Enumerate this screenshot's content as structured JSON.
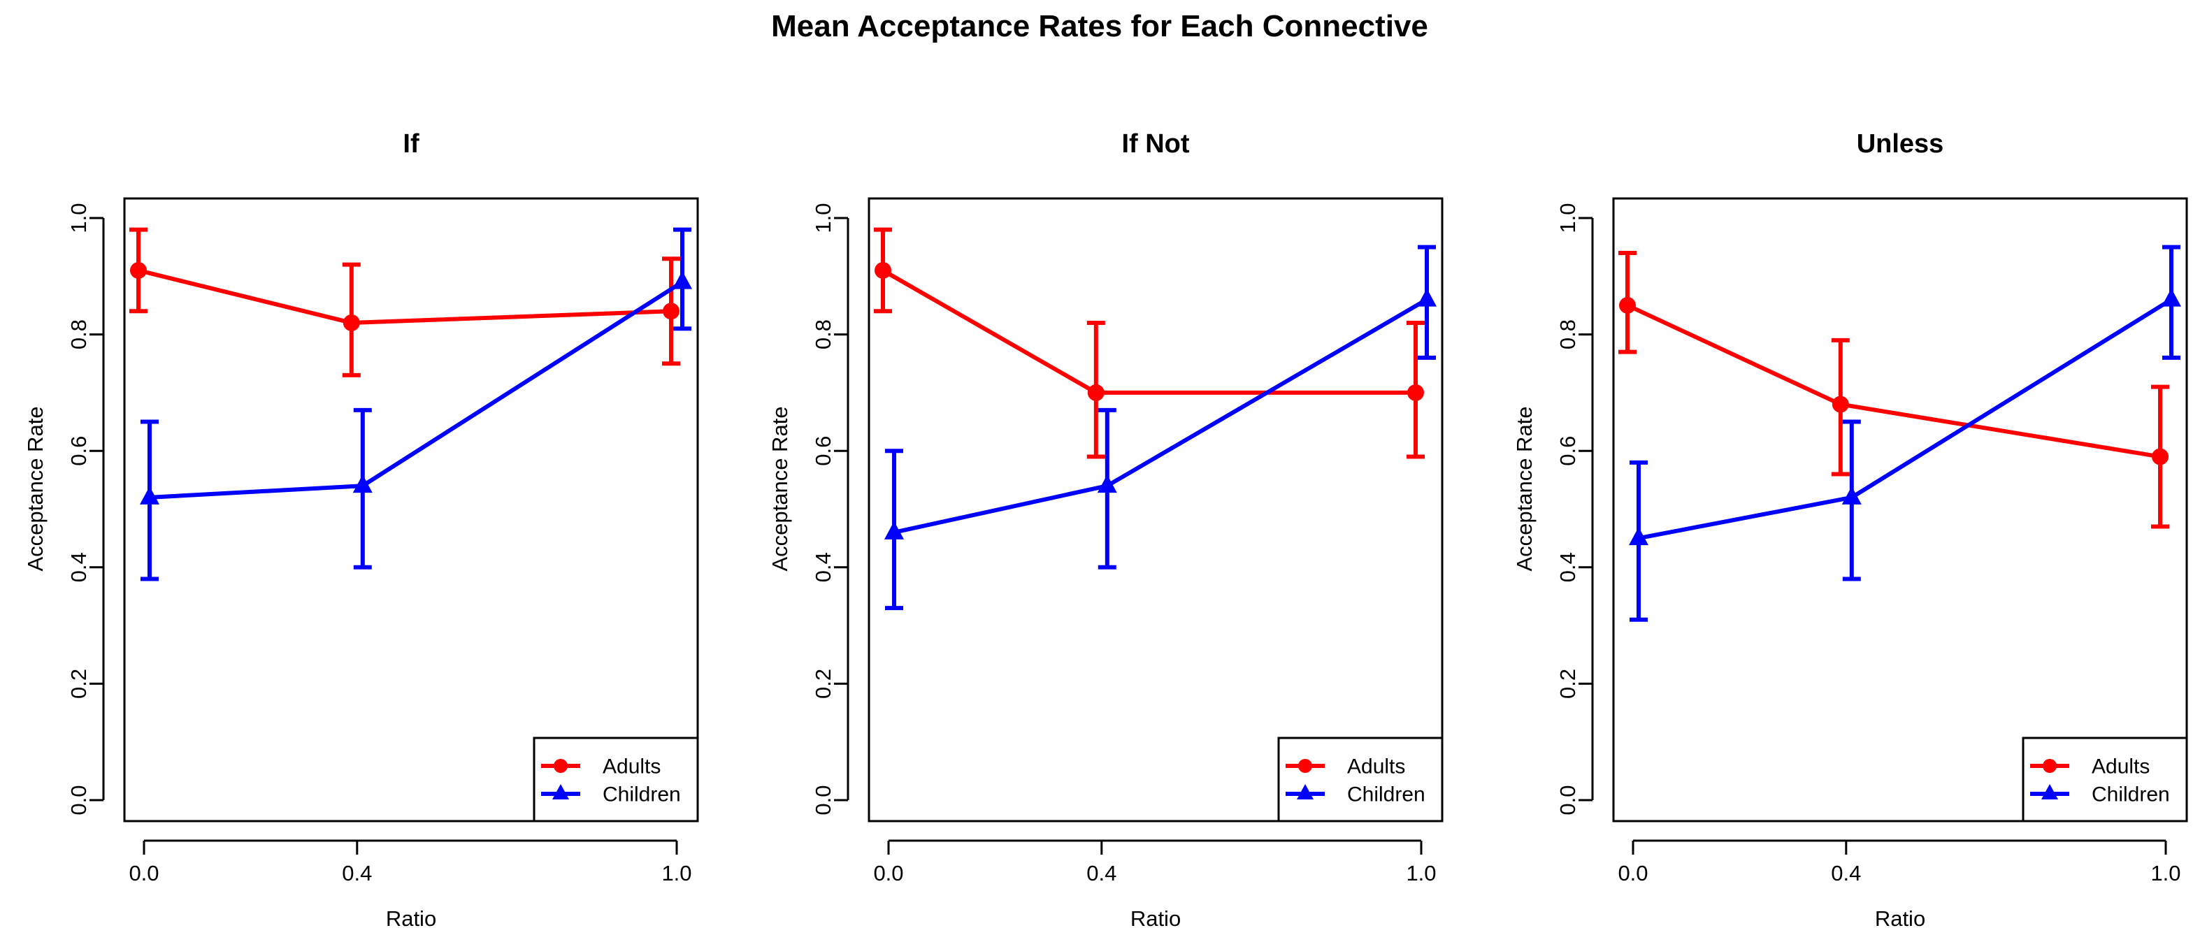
{
  "chart_data": {
    "type": "line",
    "title": "Mean Acceptance Rates for Each Connective",
    "colors": {
      "Adults": "#ff0000",
      "Children": "#0000ff"
    },
    "markers": {
      "Adults": "circle",
      "Children": "triangle"
    },
    "panels": [
      {
        "title": "If",
        "xlabel": "Ratio",
        "ylabel": "Acceptance Rate",
        "x": [
          0.0,
          0.4,
          1.0
        ],
        "xtick_labels": [
          "0.0",
          "0.4",
          "1.0"
        ],
        "ylim": [
          0.0,
          1.0
        ],
        "yticks": [
          "0.0",
          "0.2",
          "0.4",
          "0.6",
          "0.8",
          "1.0"
        ],
        "legend": [
          "Adults",
          "Children"
        ],
        "legend_position": "bottom-right",
        "series": [
          {
            "name": "Adults",
            "values": [
              0.91,
              0.82,
              0.84
            ],
            "lower": [
              0.84,
              0.73,
              0.75
            ],
            "upper": [
              0.98,
              0.92,
              0.93
            ]
          },
          {
            "name": "Children",
            "values": [
              0.52,
              0.54,
              0.89
            ],
            "lower": [
              0.38,
              0.4,
              0.81
            ],
            "upper": [
              0.65,
              0.67,
              0.98
            ]
          }
        ]
      },
      {
        "title": "If Not",
        "xlabel": "Ratio",
        "ylabel": "Acceptance Rate",
        "x": [
          0.0,
          0.4,
          1.0
        ],
        "xtick_labels": [
          "0.0",
          "0.4",
          "1.0"
        ],
        "ylim": [
          0.0,
          1.0
        ],
        "yticks": [
          "0.0",
          "0.2",
          "0.4",
          "0.6",
          "0.8",
          "1.0"
        ],
        "legend": [
          "Adults",
          "Children"
        ],
        "legend_position": "bottom-right",
        "series": [
          {
            "name": "Adults",
            "values": [
              0.91,
              0.7,
              0.7
            ],
            "lower": [
              0.84,
              0.59,
              0.59
            ],
            "upper": [
              0.98,
              0.82,
              0.82
            ]
          },
          {
            "name": "Children",
            "values": [
              0.46,
              0.54,
              0.86
            ],
            "lower": [
              0.33,
              0.4,
              0.76
            ],
            "upper": [
              0.6,
              0.67,
              0.95
            ]
          }
        ]
      },
      {
        "title": "Unless",
        "xlabel": "Ratio",
        "ylabel": "Acceptance Rate",
        "x": [
          0.0,
          0.4,
          1.0
        ],
        "xtick_labels": [
          "0.0",
          "0.4",
          "1.0"
        ],
        "ylim": [
          0.0,
          1.0
        ],
        "yticks": [
          "0.0",
          "0.2",
          "0.4",
          "0.6",
          "0.8",
          "1.0"
        ],
        "legend": [
          "Adults",
          "Children"
        ],
        "legend_position": "bottom-right",
        "series": [
          {
            "name": "Adults",
            "values": [
              0.85,
              0.68,
              0.59
            ],
            "lower": [
              0.77,
              0.56,
              0.47
            ],
            "upper": [
              0.94,
              0.79,
              0.71
            ]
          },
          {
            "name": "Children",
            "values": [
              0.45,
              0.52,
              0.86
            ],
            "lower": [
              0.31,
              0.38,
              0.76
            ],
            "upper": [
              0.58,
              0.65,
              0.95
            ]
          }
        ]
      }
    ]
  }
}
